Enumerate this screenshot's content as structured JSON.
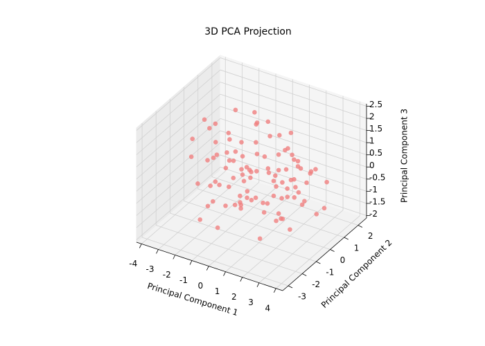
{
  "chart_data": {
    "type": "scatter3d",
    "title": "3D PCA Projection",
    "xlabel": "Principal Component 1",
    "ylabel": "Principal Component 2",
    "zlabel": "Principal Component 3",
    "xlim": [
      -4.3,
      4.4
    ],
    "ylim": [
      -3.4,
      2.6
    ],
    "zlim": [
      -2.1,
      2.6
    ],
    "xticks": [
      -4,
      -3,
      -2,
      -1,
      0,
      1,
      2,
      3,
      4
    ],
    "yticks": [
      -3,
      -2,
      -1,
      0,
      1,
      2
    ],
    "zticks": [
      -2.0,
      -1.5,
      -1.0,
      -0.5,
      0.0,
      0.5,
      1.0,
      1.5,
      2.0,
      2.5
    ],
    "grid": true,
    "series": [
      {
        "color": "#f08080",
        "x": [
          -3.2,
          -2.8,
          -2.5,
          -2.1,
          -1.9,
          -1.6,
          -1.4,
          -1.2,
          -1.0,
          -0.8,
          -0.6,
          -0.5,
          -0.3,
          -0.2,
          0.0,
          0.1,
          0.3,
          0.4,
          0.6,
          0.7,
          0.9,
          1.0,
          1.2,
          1.3,
          1.5,
          1.6,
          1.8,
          2.0,
          2.2,
          2.4,
          2.6,
          2.9,
          3.2,
          3.5,
          -2.2,
          -1.7,
          -1.1,
          -0.7,
          -0.1,
          0.5,
          1.1,
          1.7,
          2.3,
          2.8,
          -3.0,
          -2.4,
          -1.5,
          -0.9,
          0.2,
          0.8,
          1.4,
          2.1,
          2.7,
          3.1,
          -1.8,
          -1.3,
          -0.4,
          0.3,
          1.0,
          1.9,
          -2.6,
          -2.0,
          -1.0,
          -0.2,
          0.6,
          1.3,
          2.5,
          3.3,
          -0.5,
          0.9,
          -1.6,
          -0.8,
          0.1,
          0.7,
          1.6,
          2.2,
          -2.9,
          -1.2,
          0.4,
          1.2,
          2.0,
          -0.3,
          0.5,
          1.5,
          -1.4,
          -0.6,
          0.0,
          0.8,
          1.8,
          2.6,
          -2.3,
          -1.1,
          0.2,
          1.1,
          2.4,
          -0.9,
          0.3,
          1.4,
          3.0,
          -1.9
        ],
        "y": [
          0.5,
          -1.2,
          1.1,
          -0.4,
          0.8,
          -2.1,
          0.2,
          1.5,
          -0.9,
          -1.8,
          0.6,
          1.2,
          -0.3,
          -2.4,
          0.9,
          -1.1,
          1.7,
          0.0,
          -0.7,
          1.3,
          -1.5,
          0.4,
          -2.6,
          0.7,
          1.0,
          -0.5,
          -1.9,
          0.3,
          1.6,
          -1.0,
          0.8,
          -0.2,
          1.2,
          0.1,
          -2.0,
          1.4,
          -0.6,
          0.9,
          -1.4,
          -2.8,
          0.5,
          -0.8,
          1.1,
          -1.6,
          -0.1,
          -1.3,
          1.8,
          -2.2,
          0.6,
          -0.4,
          1.3,
          -1.1,
          0.2,
          -0.7,
          -0.9,
          0.4,
          -1.7,
          1.0,
          -2.3,
          0.7,
          1.5,
          -0.5,
          0.1,
          1.9,
          -1.2,
          0.3,
          -0.3,
          0.9,
          -2.5,
          1.4,
          -1.0,
          0.6,
          -0.8,
          -1.9,
          0.8,
          -1.4,
          0.0,
          1.1,
          0.5,
          -0.6,
          1.2,
          -1.6,
          0.2,
          -0.2,
          0.7,
          -2.1,
          1.6,
          -1.0,
          0.4,
          -0.9,
          -0.7,
          1.3,
          -1.3,
          0.9,
          -0.4,
          0.2,
          -2.0,
          1.5,
          -1.2,
          0.3
        ],
        "z": [
          0.9,
          1.4,
          0.3,
          -0.6,
          1.8,
          -1.2,
          0.5,
          -0.2,
          1.1,
          -1.5,
          2.1,
          0.0,
          -0.9,
          0.7,
          -0.4,
          1.3,
          0.2,
          -1.1,
          0.6,
          -0.3,
          0.8,
          -1.6,
          0.4,
          1.0,
          -0.7,
          0.1,
          -1.3,
          0.9,
          -0.1,
          -0.8,
          0.3,
          -0.5,
          -0.2,
          -0.9,
          1.2,
          -1.8,
          0.6,
          1.5,
          -0.6,
          0.2,
          -1.0,
          0.5,
          0.0,
          -0.4,
          1.6,
          -0.3,
          0.8,
          0.4,
          1.9,
          -1.2,
          0.2,
          -0.9,
          -0.6,
          0.3,
          0.7,
          -1.4,
          1.0,
          -0.5,
          0.1,
          0.4,
          -0.8,
          1.1,
          -1.7,
          0.6,
          0.9,
          -0.2,
          0.5,
          -1.1,
          0.0,
          1.2,
          2.2,
          -0.4,
          0.7,
          1.3,
          -1.0,
          0.3,
          -0.1,
          -1.9,
          1.4,
          0.8,
          -0.5,
          0.2,
          -1.2,
          0.6,
          -0.7,
          1.7,
          0.0,
          -0.3,
          1.0,
          0.1,
          -1.5,
          0.4,
          2.0,
          -0.8,
          0.5,
          -0.6,
          0.9,
          -0.2,
          -1.0,
          1.1
        ]
      }
    ]
  }
}
